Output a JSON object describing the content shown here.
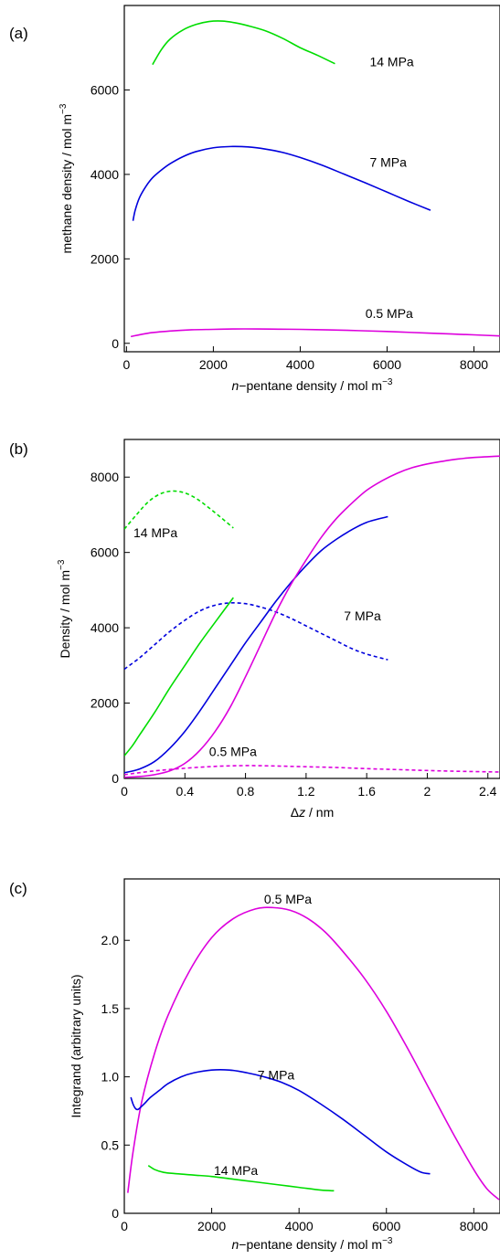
{
  "chart_data": [
    {
      "panel": "(a)",
      "type": "line",
      "xlabel_prefix": "n",
      "xlabel": "−pentane density / mol m",
      "xlabel_sup": "−3",
      "ylabel": "methane density / mol m",
      "ylabel_sup": "−3",
      "xlim": [
        -50,
        8600
      ],
      "ylim": [
        -200,
        8000
      ],
      "xticks": [
        0,
        2000,
        4000,
        6000,
        8000
      ],
      "yticks": [
        0,
        2000,
        4000,
        6000
      ],
      "series": [
        {
          "name": "14 MPa",
          "color": "#00dd00",
          "style": "solid",
          "x": [
            600,
            800,
            1000,
            1300,
            1600,
            1900,
            2200,
            2500,
            2800,
            3200,
            3600,
            4000,
            4400,
            4800
          ],
          "y": [
            6600,
            6950,
            7200,
            7420,
            7550,
            7620,
            7630,
            7590,
            7520,
            7400,
            7220,
            7000,
            6820,
            6620
          ]
        },
        {
          "name": "7 MPa",
          "color": "#0000dd",
          "style": "solid",
          "x": [
            150,
            200,
            300,
            450,
            600,
            800,
            1000,
            1300,
            1600,
            2000,
            2400,
            2800,
            3200,
            3600,
            4000,
            4500,
            5000,
            5500,
            6000,
            6500,
            7000
          ],
          "y": [
            2900,
            3150,
            3450,
            3720,
            3920,
            4100,
            4250,
            4420,
            4540,
            4630,
            4660,
            4650,
            4600,
            4520,
            4400,
            4220,
            4010,
            3800,
            3580,
            3360,
            3150
          ]
        },
        {
          "name": "0.5 MPa",
          "color": "#dd00dd",
          "style": "solid",
          "x": [
            100,
            500,
            1000,
            1500,
            2000,
            2500,
            3000,
            3500,
            4000,
            4500,
            5000,
            5500,
            6000,
            6500,
            7000,
            7500,
            8000,
            8600
          ],
          "y": [
            160,
            240,
            290,
            320,
            330,
            340,
            340,
            335,
            330,
            320,
            310,
            295,
            280,
            260,
            240,
            220,
            200,
            175
          ]
        }
      ],
      "labels": [
        {
          "text": "14 MPa",
          "x": 5600,
          "y": 6560
        },
        {
          "text": "7 MPa",
          "x": 5600,
          "y": 4180
        },
        {
          "text": "0.5 MPa",
          "x": 5500,
          "y": 600
        }
      ]
    },
    {
      "panel": "(b)",
      "type": "line",
      "xlabel_prefix": "Δ",
      "xlabel_italic": "z",
      "xlabel": " / nm",
      "ylabel": "Density / mol m",
      "ylabel_sup": "−3",
      "xlim": [
        0,
        2.48
      ],
      "ylim": [
        0,
        9000
      ],
      "xticks": [
        0,
        0.4,
        0.8,
        1.2,
        1.6,
        2,
        2.4
      ],
      "yticks": [
        0,
        2000,
        4000,
        6000,
        8000
      ],
      "series": [
        {
          "name": "14 MPa",
          "color": "#00dd00",
          "style": "dashed",
          "x": [
            0,
            0.08,
            0.16,
            0.24,
            0.32,
            0.4,
            0.48,
            0.56,
            0.64,
            0.72
          ],
          "y": [
            6620,
            7000,
            7350,
            7560,
            7630,
            7580,
            7420,
            7180,
            6920,
            6650
          ]
        },
        {
          "name": "7 MPa",
          "color": "#0000dd",
          "style": "dashed",
          "x": [
            0,
            0.1,
            0.2,
            0.3,
            0.4,
            0.5,
            0.6,
            0.7,
            0.8,
            0.9,
            1.0,
            1.1,
            1.2,
            1.3,
            1.4,
            1.5,
            1.6,
            1.74
          ],
          "y": [
            2900,
            3200,
            3550,
            3900,
            4200,
            4450,
            4600,
            4660,
            4640,
            4550,
            4420,
            4250,
            4050,
            3850,
            3650,
            3450,
            3300,
            3150
          ]
        },
        {
          "name": "0.5 MPa",
          "color": "#dd00dd",
          "style": "dashed",
          "x": [
            0,
            0.2,
            0.4,
            0.6,
            0.8,
            1.0,
            1.2,
            1.4,
            1.6,
            1.8,
            2.0,
            2.2,
            2.48
          ],
          "y": [
            100,
            200,
            270,
            320,
            340,
            330,
            310,
            290,
            260,
            235,
            210,
            190,
            170
          ]
        },
        {
          "name": "14 MPa",
          "color": "#00dd00",
          "style": "solid",
          "x": [
            0,
            0.05,
            0.1,
            0.2,
            0.3,
            0.4,
            0.5,
            0.6,
            0.72
          ],
          "y": [
            600,
            850,
            1150,
            1750,
            2400,
            3000,
            3600,
            4150,
            4800
          ]
        },
        {
          "name": "7 MPa",
          "color": "#0000dd",
          "style": "solid",
          "x": [
            0,
            0.1,
            0.2,
            0.3,
            0.4,
            0.5,
            0.6,
            0.7,
            0.8,
            0.9,
            1.0,
            1.1,
            1.2,
            1.3,
            1.4,
            1.5,
            1.6,
            1.74
          ],
          "y": [
            150,
            250,
            450,
            800,
            1250,
            1800,
            2400,
            3000,
            3600,
            4150,
            4700,
            5200,
            5650,
            6050,
            6350,
            6600,
            6800,
            6950
          ]
        },
        {
          "name": "0.5 MPa",
          "color": "#dd00dd",
          "style": "solid",
          "x": [
            0,
            0.1,
            0.2,
            0.3,
            0.4,
            0.5,
            0.6,
            0.7,
            0.8,
            0.9,
            1.0,
            1.1,
            1.2,
            1.3,
            1.4,
            1.5,
            1.6,
            1.7,
            1.8,
            1.9,
            2.0,
            2.1,
            2.2,
            2.3,
            2.48
          ],
          "y": [
            30,
            50,
            100,
            200,
            400,
            750,
            1250,
            1900,
            2700,
            3550,
            4400,
            5150,
            5800,
            6400,
            6900,
            7300,
            7650,
            7900,
            8100,
            8250,
            8350,
            8420,
            8480,
            8520,
            8560
          ]
        }
      ],
      "labels": [
        {
          "text": "14 MPa",
          "x": 0.06,
          "y": 6400
        },
        {
          "text": "7 MPa",
          "x": 1.45,
          "y": 4200
        },
        {
          "text": "0.5 MPa",
          "x": 0.56,
          "y": 600
        }
      ]
    },
    {
      "panel": "(c)",
      "type": "line",
      "xlabel_prefix": "n",
      "xlabel": "−pentane density / mol m",
      "xlabel_sup": "−3",
      "ylabel": "Integrand (arbitrary units)",
      "xlim": [
        0,
        8600
      ],
      "ylim": [
        0,
        2.45
      ],
      "xticks": [
        0,
        2000,
        4000,
        6000,
        8000
      ],
      "yticks": [
        0,
        0.5,
        1.0,
        1.5,
        2.0
      ],
      "ytick_labels": [
        "0",
        "0.5",
        "1.0",
        "1.5",
        "2.0"
      ],
      "series": [
        {
          "name": "0.5 MPa",
          "color": "#dd00dd",
          "style": "solid",
          "x": [
            80,
            200,
            400,
            700,
            1000,
            1500,
            2000,
            2500,
            3000,
            3400,
            3800,
            4200,
            4600,
            5000,
            5500,
            6000,
            6500,
            7000,
            7500,
            8000,
            8300,
            8580
          ],
          "y": [
            0.15,
            0.45,
            0.82,
            1.18,
            1.45,
            1.78,
            2.02,
            2.16,
            2.23,
            2.24,
            2.22,
            2.16,
            2.06,
            1.92,
            1.72,
            1.48,
            1.2,
            0.9,
            0.6,
            0.32,
            0.18,
            0.1
          ]
        },
        {
          "name": "7 MPa",
          "color": "#0000dd",
          "style": "solid",
          "x": [
            150,
            200,
            250,
            300,
            350,
            450,
            600,
            800,
            1000,
            1300,
            1600,
            2000,
            2400,
            2800,
            3200,
            3600,
            4000,
            4500,
            5000,
            5500,
            6000,
            6500,
            6800,
            7000
          ],
          "y": [
            0.85,
            0.8,
            0.77,
            0.76,
            0.77,
            0.8,
            0.85,
            0.9,
            0.95,
            1.0,
            1.03,
            1.05,
            1.05,
            1.03,
            1.0,
            0.96,
            0.9,
            0.8,
            0.69,
            0.57,
            0.45,
            0.35,
            0.3,
            0.29
          ]
        },
        {
          "name": "14 MPa",
          "color": "#00dd00",
          "style": "solid",
          "x": [
            550,
            700,
            900,
            1200,
            1600,
            2000,
            2500,
            3000,
            3500,
            4000,
            4500,
            4800
          ],
          "y": [
            0.35,
            0.32,
            0.3,
            0.29,
            0.28,
            0.27,
            0.25,
            0.23,
            0.21,
            0.19,
            0.17,
            0.165
          ]
        }
      ],
      "labels": [
        {
          "text": "0.5 MPa",
          "x": 3200,
          "y": 2.27
        },
        {
          "text": "7 MPa",
          "x": 3050,
          "y": 0.98
        },
        {
          "text": "14 MPa",
          "x": 2050,
          "y": 0.28
        }
      ]
    }
  ]
}
